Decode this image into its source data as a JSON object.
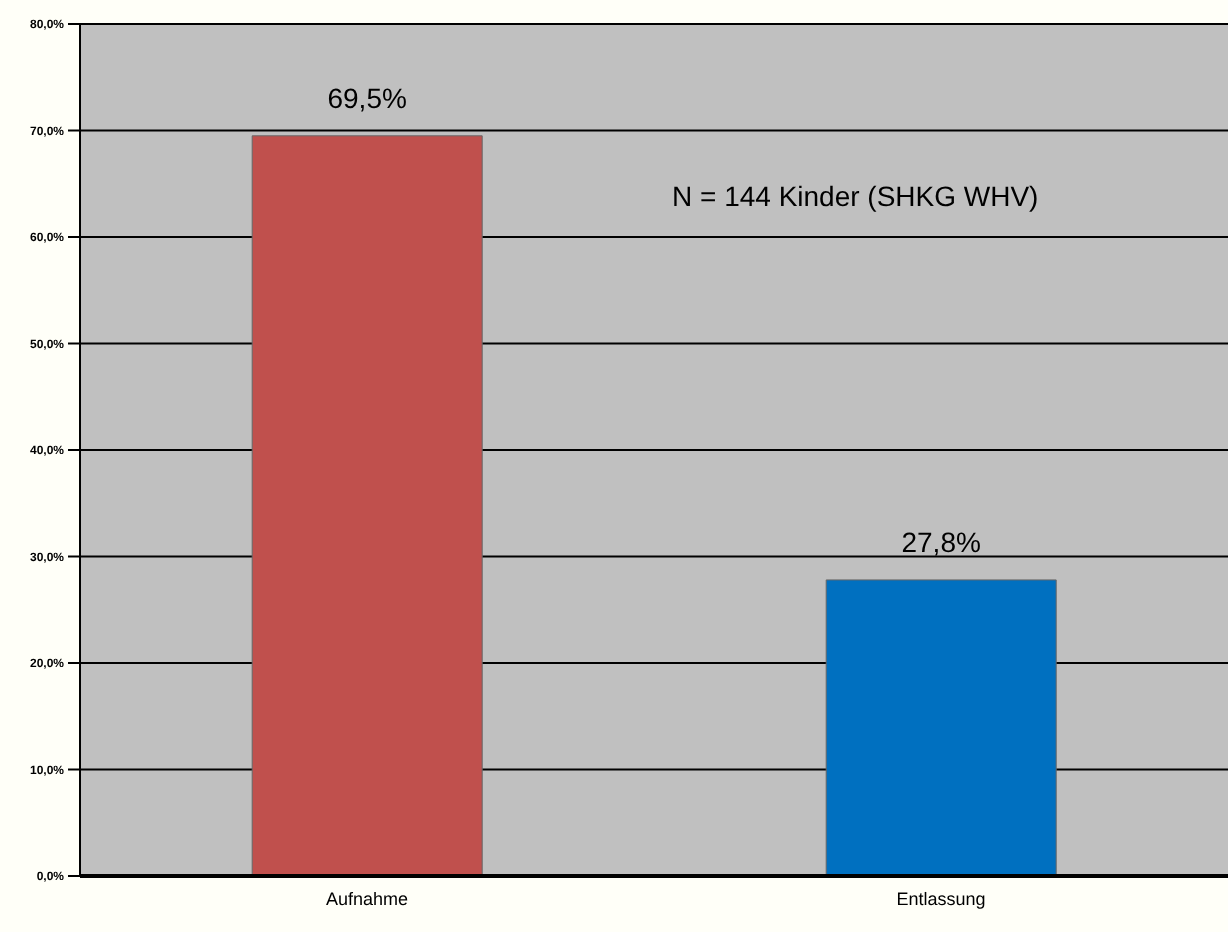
{
  "chart_data": {
    "type": "bar",
    "categories": [
      "Aufnahme",
      "Entlassung"
    ],
    "values": [
      69.5,
      27.8
    ],
    "colors": [
      "#c0504d",
      "#0070c0"
    ],
    "value_labels": [
      "69,5%",
      "27,8%"
    ],
    "ylim": [
      0,
      80
    ],
    "yticks": [
      {
        "value": 0,
        "label": "0,0%"
      },
      {
        "value": 10,
        "label": "10,0%"
      },
      {
        "value": 20,
        "label": "20,0%"
      },
      {
        "value": 30,
        "label": "30,0%"
      },
      {
        "value": 40,
        "label": "40,0%"
      },
      {
        "value": 50,
        "label": "50,0%"
      },
      {
        "value": 60,
        "label": "60,0%"
      },
      {
        "value": 70,
        "label": "70,0%"
      },
      {
        "value": 80,
        "label": "80,0%"
      }
    ],
    "grid": "y",
    "annotations": [
      "N = 144 Kinder (SHKG WHV)"
    ]
  }
}
